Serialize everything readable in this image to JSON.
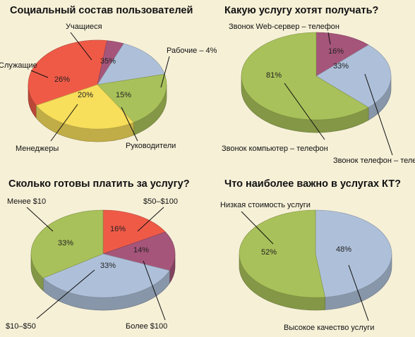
{
  "colors": {
    "red": "#ef5a47",
    "yellow": "#f7de5b",
    "green": "#a9c15a",
    "blue": "#aec0d9",
    "purple": "#a6557a",
    "background": "#f6f0d7"
  },
  "chart_data": [
    {
      "type": "pie",
      "title": "Социальный состав пользователей",
      "slices": [
        {
          "label": "Учащиеся",
          "value": 35,
          "value_label": "35%",
          "color": "red"
        },
        {
          "label": "Рабочие – 4%",
          "value": 4,
          "value_label": "",
          "color": "purple"
        },
        {
          "label": "Руководители",
          "value": 15,
          "value_label": "15%",
          "color": "blue"
        },
        {
          "label": "Менеджеры",
          "value": 20,
          "value_label": "20%",
          "color": "green"
        },
        {
          "label": "Служащие",
          "value": 26,
          "value_label": "26%",
          "color": "yellow"
        }
      ]
    },
    {
      "type": "pie",
      "title": "Какую услугу хотят получать?",
      "slices": [
        {
          "label": "Звонок Web-сервер – телефон",
          "value": 16,
          "value_label": "16%",
          "color": "purple"
        },
        {
          "label": "Звонок телефон – телефон",
          "value": 33,
          "value_label": "33%",
          "color": "blue"
        },
        {
          "label": "Звонок компьютер – телефон",
          "value": 81,
          "value_label": "81%",
          "color": "green"
        }
      ]
    },
    {
      "type": "pie",
      "title": "Сколько готовы платить за услугу?",
      "slices": [
        {
          "label": "$50–$100",
          "value": 16,
          "value_label": "16%",
          "color": "red"
        },
        {
          "label": "Более $100",
          "value": 14,
          "value_label": "14%",
          "color": "purple"
        },
        {
          "label": "$10–$50",
          "value": 33,
          "value_label": "33%",
          "color": "blue"
        },
        {
          "label": "Менее $10",
          "value": 33,
          "value_label": "33%",
          "color": "green"
        }
      ]
    },
    {
      "type": "pie",
      "title": "Что наиболее важно в услугах КТ?",
      "slices": [
        {
          "label": "Высокое качество услуги",
          "value": 48,
          "value_label": "48%",
          "color": "blue"
        },
        {
          "label": "Низкая стоимость услуги",
          "value": 52,
          "value_label": "52%",
          "color": "green"
        }
      ]
    }
  ]
}
